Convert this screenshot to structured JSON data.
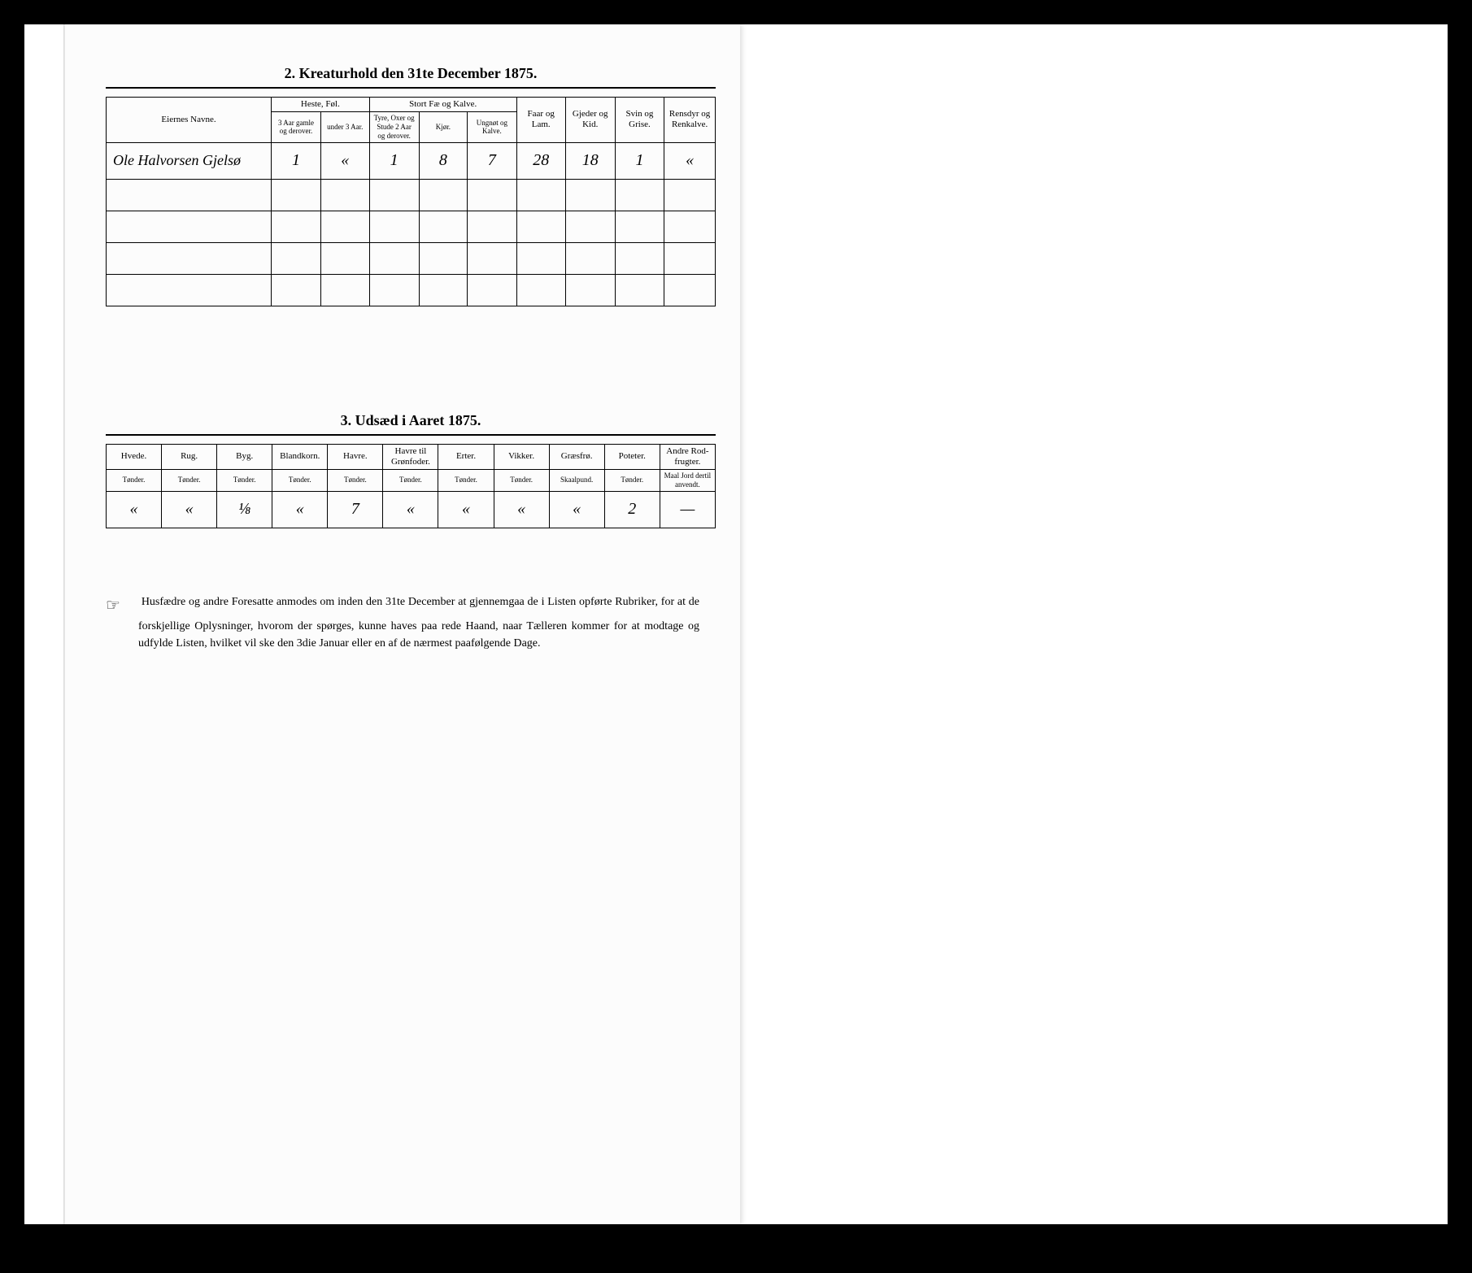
{
  "section2": {
    "title": "2.  Kreaturhold den 31te December 1875.",
    "headers": {
      "owner": "Eiernes Navne.",
      "horses": "Heste, Føl.",
      "horses_a": "3 Aar gamle og derover.",
      "horses_b": "under 3 Aar.",
      "cattle": "Stort Fæ og Kalve.",
      "cattle_a": "Tyre, Oxer og Stude 2 Aar og derover.",
      "cattle_b": "Kjør.",
      "cattle_c": "Ungnøt og Kalve.",
      "sheep": "Faar og Lam.",
      "goats": "Gjeder og Kid.",
      "pigs": "Svin og Grise.",
      "reindeer": "Rensdyr og Renkalve."
    },
    "row": {
      "name": "Ole Halvorsen Gjelsø",
      "horses_a": "1",
      "horses_b": "«",
      "cattle_a": "1",
      "cattle_b": "8",
      "cattle_c": "7",
      "sheep": "28",
      "goats": "18",
      "pigs": "1",
      "reindeer": "«"
    }
  },
  "section3": {
    "title": "3.  Udsæd i Aaret 1875.",
    "headers": {
      "wheat": "Hvede.",
      "rye": "Rug.",
      "barley": "Byg.",
      "mixed": "Blandkorn.",
      "oats": "Havre.",
      "green": "Havre til Grønfoder.",
      "peas": "Erter.",
      "vetch": "Vikker.",
      "grass": "Græsfrø.",
      "potato": "Poteter.",
      "root": "Andre Rod-frugter.",
      "unit_t": "Tønder.",
      "unit_s": "Skaalpund.",
      "unit_m": "Maal Jord dertil anvendt."
    },
    "row": {
      "wheat": "«",
      "rye": "«",
      "barley": "⅛",
      "mixed": "«",
      "oats": "7",
      "green": "«",
      "peas": "«",
      "vetch": "«",
      "grass": "«",
      "potato": "2",
      "root": "—"
    }
  },
  "footnote": "Husfædre og andre Foresatte anmodes om inden den 31te December at gjennemgaa de i Listen opførte Rubriker, for at de forskjellige Oplysninger, hvorom der spørges, kunne haves paa rede Haand, naar Tælleren kommer for at modtage og udfylde Listen, hvilket vil ske den 3die Januar eller en af de nærmest paafølgende Dage."
}
